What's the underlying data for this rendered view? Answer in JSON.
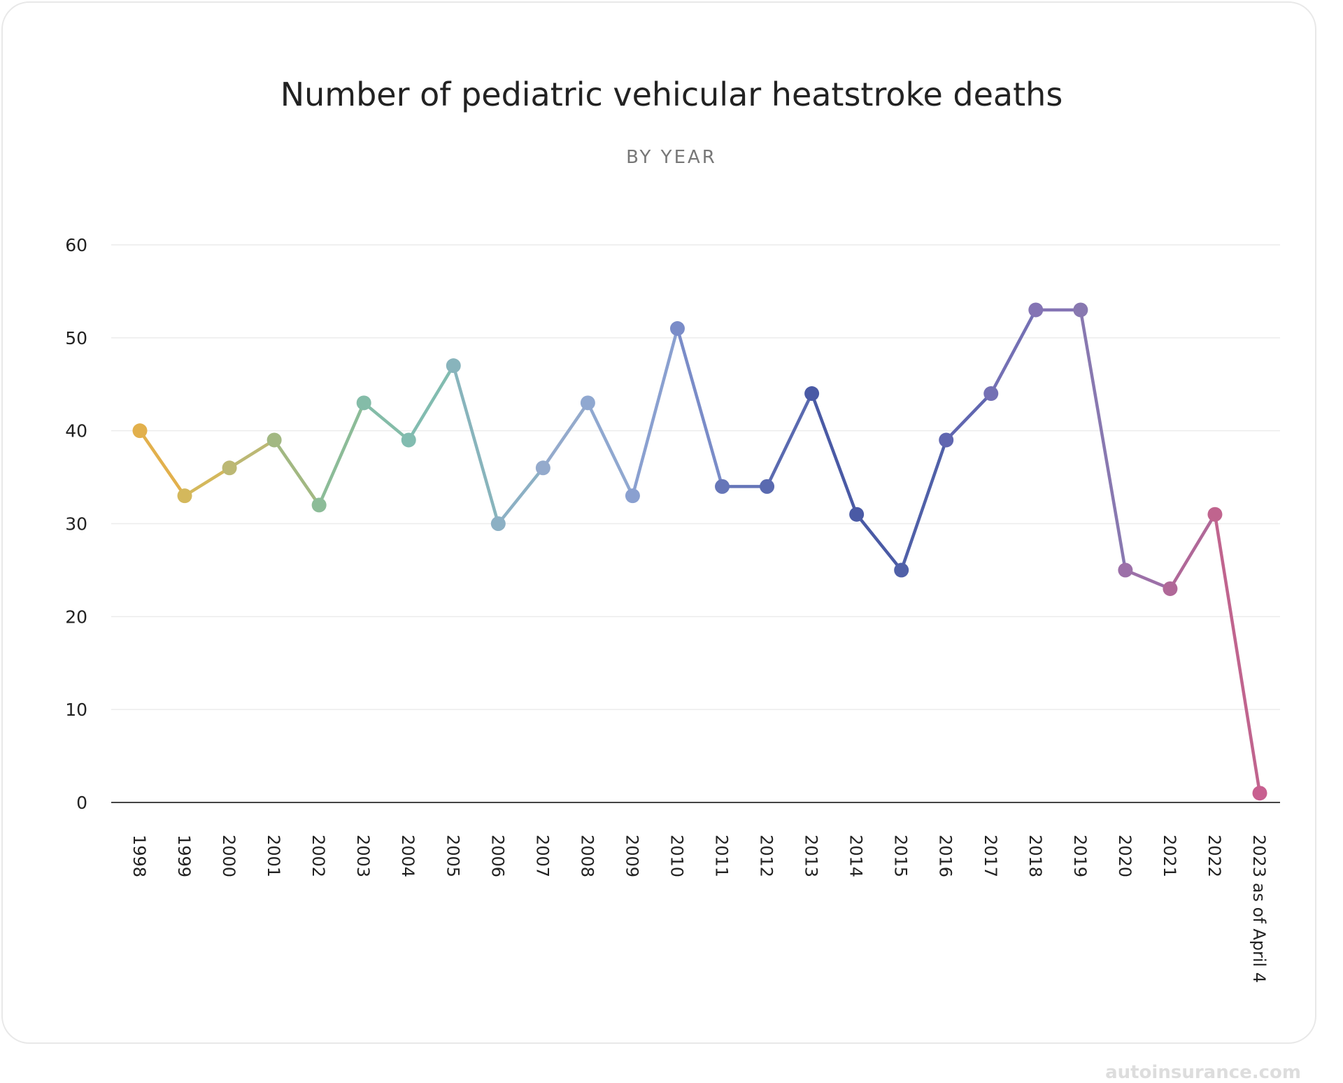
{
  "title": "Number of pediatric vehicular heatstroke deaths",
  "subtitle": "BY YEAR",
  "watermark": "autoinsurance.com",
  "chart_data": {
    "type": "line",
    "title": "Number of pediatric vehicular heatstroke deaths",
    "subtitle": "BY YEAR",
    "xlabel": "",
    "ylabel": "",
    "categories": [
      "1998",
      "1999",
      "2000",
      "2001",
      "2002",
      "2003",
      "2004",
      "2005",
      "2006",
      "2007",
      "2008",
      "2009",
      "2010",
      "2011",
      "2012",
      "2013",
      "2014",
      "2015",
      "2016",
      "2017",
      "2018",
      "2019",
      "2020",
      "2021",
      "2022",
      "2023 as of April 4"
    ],
    "values": [
      40,
      33,
      36,
      39,
      32,
      43,
      39,
      47,
      30,
      36,
      43,
      33,
      51,
      34,
      34,
      44,
      31,
      25,
      39,
      44,
      53,
      53,
      25,
      23,
      31,
      1
    ],
    "ylim": [
      0,
      60
    ],
    "yticks": [
      0,
      10,
      20,
      30,
      40,
      50,
      60
    ],
    "grid": true,
    "colors": [
      "#e2b04c",
      "#d4b85c",
      "#bcb874",
      "#a2b882",
      "#8cbc98",
      "#84bca8",
      "#82bcb0",
      "#88b4bc",
      "#8cb0c4",
      "#94aacc",
      "#90a8d0",
      "#8aa0d0",
      "#7a8cc8",
      "#6676b8",
      "#5a6ab0",
      "#4a5aa5",
      "#4a5aa5",
      "#5060a8",
      "#6066b0",
      "#7470b4",
      "#8474b4",
      "#8878b0",
      "#9c70a8",
      "#b06898",
      "#c0648e",
      "#c86090"
    ]
  }
}
